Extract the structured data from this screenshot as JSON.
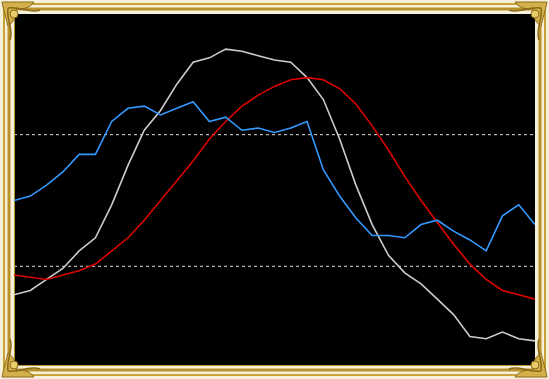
{
  "chart_data": {
    "type": "line",
    "x": [
      0,
      1,
      2,
      3,
      4,
      5,
      6,
      7,
      8,
      9,
      10,
      11,
      12,
      13,
      14,
      15,
      16,
      17,
      18,
      19,
      20,
      21,
      22,
      23,
      24,
      25,
      26,
      27,
      28,
      29,
      30,
      31,
      32
    ],
    "xlim": [
      0,
      32
    ],
    "xticks": [],
    "ylim": [
      -25,
      135
    ],
    "yticks": [
      20,
      80
    ],
    "grid": true,
    "tick_labels": false,
    "series": [
      {
        "color": "#cccccc",
        "values": [
          7,
          9,
          14,
          19,
          27,
          33,
          48,
          66,
          82,
          91,
          103,
          113,
          115,
          119,
          118,
          116,
          114,
          113,
          106,
          96,
          78,
          57,
          39,
          25,
          17,
          12,
          5,
          -2,
          -12,
          -13,
          -10,
          -13,
          -14
        ]
      },
      {
        "color": "#dd0000",
        "values": [
          16,
          15,
          14,
          16,
          18,
          21,
          27,
          33,
          41,
          50,
          59,
          68,
          78,
          86,
          93,
          98,
          102,
          105,
          106,
          105,
          101,
          94,
          84,
          73,
          61,
          50,
          40,
          30,
          21,
          14,
          9,
          7,
          5
        ]
      },
      {
        "color": "#3399ff",
        "values": [
          50,
          52,
          57,
          63,
          71,
          71,
          86,
          92,
          93,
          89,
          92,
          95,
          86,
          88,
          82,
          83,
          81,
          83,
          86,
          64,
          52,
          42,
          34,
          34,
          33,
          39,
          41,
          36,
          32,
          27,
          43,
          48,
          39
        ]
      }
    ]
  }
}
